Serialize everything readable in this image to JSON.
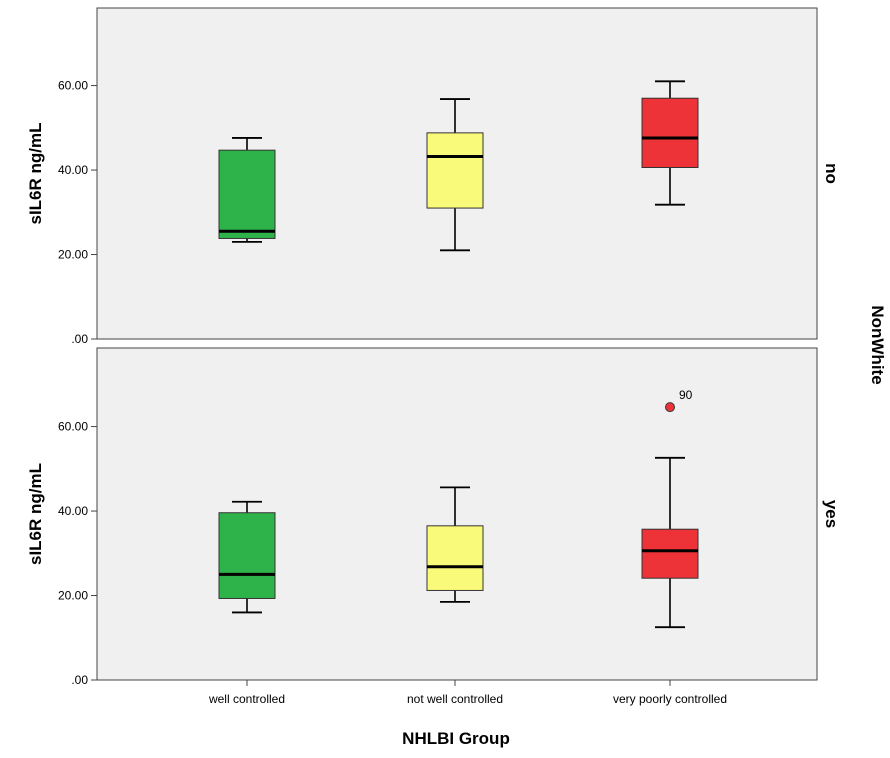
{
  "chart_data": {
    "type": "boxplot",
    "xlabel": "NHLBI Group",
    "ylabel": "sIL6R ng/mL",
    "facet_label": "NonWhite",
    "categories": [
      "well controlled",
      "not well controlled",
      "very poorly controlled"
    ],
    "category_colors": [
      "#2db34a",
      "#fafa7a",
      "#ee3338"
    ],
    "ylim": [
      0,
      75
    ],
    "yticks": [
      0,
      20,
      40,
      60
    ],
    "ytick_labels": [
      ".00",
      "20.00",
      "40.00",
      "60.00"
    ],
    "grid": false,
    "panels": [
      {
        "label": "no",
        "boxes": [
          {
            "category": "well controlled",
            "whisker_low": 23.0,
            "q1": 23.8,
            "median": 25.5,
            "q3": 44.7,
            "whisker_high": 47.6
          },
          {
            "category": "not well controlled",
            "whisker_low": 21.0,
            "q1": 31.0,
            "median": 43.2,
            "q3": 48.8,
            "whisker_high": 56.8
          },
          {
            "category": "very poorly controlled",
            "whisker_low": 31.8,
            "q1": 40.6,
            "median": 47.6,
            "q3": 57.0,
            "whisker_high": 61.0
          }
        ],
        "outliers": []
      },
      {
        "label": "yes",
        "boxes": [
          {
            "category": "well controlled",
            "whisker_low": 16.0,
            "q1": 19.3,
            "median": 25.0,
            "q3": 39.6,
            "whisker_high": 42.2
          },
          {
            "category": "not well controlled",
            "whisker_low": 18.5,
            "q1": 21.2,
            "median": 26.8,
            "q3": 36.5,
            "whisker_high": 45.6
          },
          {
            "category": "very poorly controlled",
            "whisker_low": 12.5,
            "q1": 24.1,
            "median": 30.6,
            "q3": 35.7,
            "whisker_high": 52.6
          }
        ],
        "outliers": [
          {
            "category": "very poorly controlled",
            "value": 64.6,
            "label": "90"
          }
        ]
      }
    ]
  }
}
